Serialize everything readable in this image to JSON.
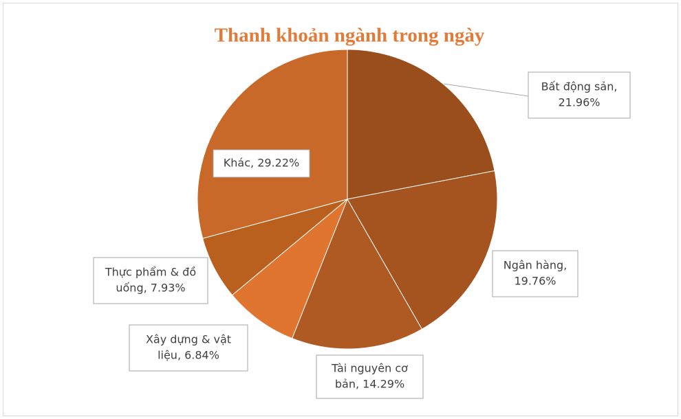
{
  "chart_data": {
    "type": "pie",
    "title": "Thanh khoản ngành trong ngày",
    "values": [
      21.96,
      19.76,
      14.29,
      7.93,
      6.84,
      29.22
    ],
    "value_labels": [
      [
        "Bất động sản,",
        "21.96%"
      ],
      [
        "Ngân hàng,",
        "19.76%"
      ],
      [
        "Tài nguyên cơ",
        "bản, 14.29%"
      ],
      [
        "Thực phẩm & đồ",
        "uống, 7.93%"
      ],
      [
        "Xây dựng & vật",
        "liệu, 6.84%"
      ],
      [
        "Khác, 29.22%"
      ]
    ],
    "colors": [
      "#9a4e1c",
      "#a5531f",
      "#b05a23",
      "#e07530",
      "#b9601f",
      "#c8692a"
    ]
  }
}
